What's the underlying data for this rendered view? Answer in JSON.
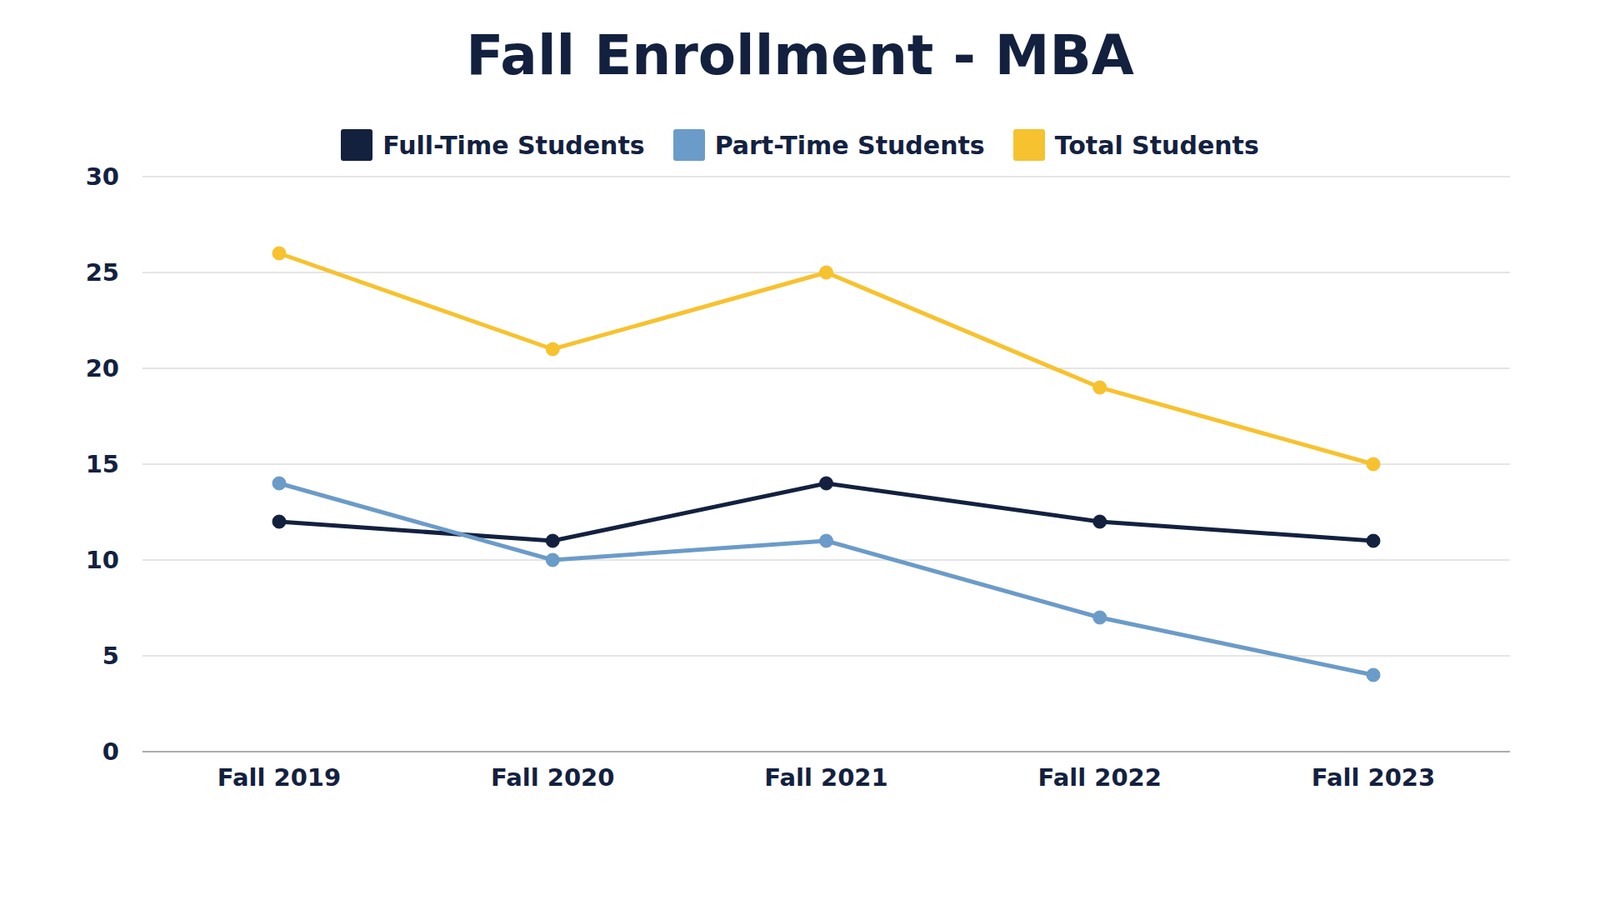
{
  "chart_data": {
    "type": "line",
    "title": "Fall Enrollment - MBA",
    "categories": [
      "Fall 2019",
      "Fall 2020",
      "Fall 2021",
      "Fall 2022",
      "Fall 2023"
    ],
    "series": [
      {
        "name": "Full-Time Students",
        "color": "#13213f",
        "values": [
          12,
          11,
          14,
          12,
          11
        ],
        "marker": "circle"
      },
      {
        "name": "Part-Time Students",
        "color": "#6b9bc8",
        "values": [
          14,
          10,
          11,
          7,
          4
        ],
        "marker": "circle"
      },
      {
        "name": "Total Students",
        "color": "#f7c22f",
        "values": [
          26,
          21,
          25,
          19,
          15
        ],
        "marker": "circle"
      }
    ],
    "ylim": [
      0,
      30
    ],
    "yticks": [
      0,
      5,
      10,
      15,
      20,
      25,
      30
    ],
    "grid": true,
    "legend": "top"
  }
}
